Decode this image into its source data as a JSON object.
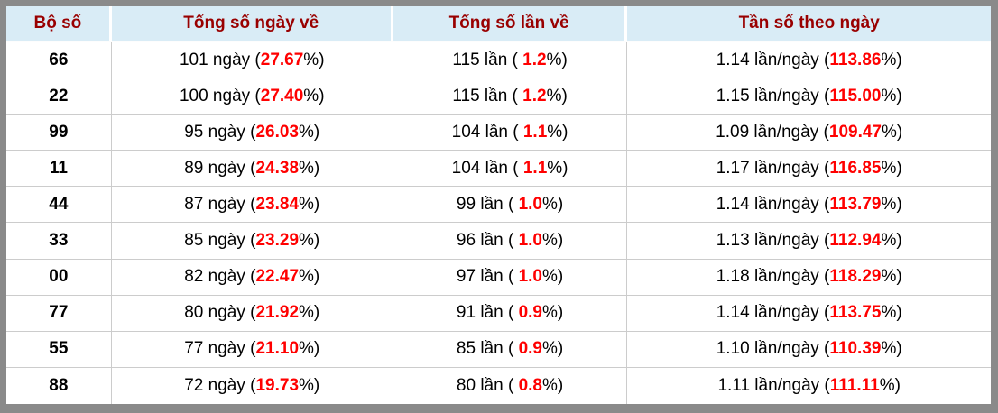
{
  "colors": {
    "frame_gray": "#8a8a8a",
    "header_background": "#d9ecf6",
    "header_text": "#990000",
    "highlight_red": "#ff0000",
    "grid_line": "#cccccc",
    "body_text": "#000000"
  },
  "chart_data": {
    "type": "table",
    "headers": [
      "Bộ số",
      "Tổng số ngày về",
      "Tổng số lần về",
      "Tần số theo ngày"
    ],
    "rows": [
      {
        "cells": [
          {
            "segments": [
              {
                "text": "66"
              }
            ]
          },
          {
            "segments": [
              {
                "text": "101 ngày ("
              },
              {
                "text": "27.67",
                "red": true
              },
              {
                "text": "%)"
              }
            ]
          },
          {
            "segments": [
              {
                "text": "115 lần ( "
              },
              {
                "text": "1.2",
                "red": true
              },
              {
                "text": "%)"
              }
            ]
          },
          {
            "segments": [
              {
                "text": "1.14 lần/ngày ("
              },
              {
                "text": "113.86",
                "red": true
              },
              {
                "text": "%)"
              }
            ]
          }
        ]
      },
      {
        "cells": [
          {
            "segments": [
              {
                "text": "22"
              }
            ]
          },
          {
            "segments": [
              {
                "text": "100 ngày ("
              },
              {
                "text": "27.40",
                "red": true
              },
              {
                "text": "%)"
              }
            ]
          },
          {
            "segments": [
              {
                "text": "115 lần ( "
              },
              {
                "text": "1.2",
                "red": true
              },
              {
                "text": "%)"
              }
            ]
          },
          {
            "segments": [
              {
                "text": "1.15 lần/ngày ("
              },
              {
                "text": "115.00",
                "red": true
              },
              {
                "text": "%)"
              }
            ]
          }
        ]
      },
      {
        "cells": [
          {
            "segments": [
              {
                "text": "99"
              }
            ]
          },
          {
            "segments": [
              {
                "text": "95 ngày ("
              },
              {
                "text": "26.03",
                "red": true
              },
              {
                "text": "%)"
              }
            ]
          },
          {
            "segments": [
              {
                "text": "104 lần ( "
              },
              {
                "text": "1.1",
                "red": true
              },
              {
                "text": "%)"
              }
            ]
          },
          {
            "segments": [
              {
                "text": "1.09 lần/ngày ("
              },
              {
                "text": "109.47",
                "red": true
              },
              {
                "text": "%)"
              }
            ]
          }
        ]
      },
      {
        "cells": [
          {
            "segments": [
              {
                "text": "11"
              }
            ]
          },
          {
            "segments": [
              {
                "text": "89 ngày ("
              },
              {
                "text": "24.38",
                "red": true
              },
              {
                "text": "%)"
              }
            ]
          },
          {
            "segments": [
              {
                "text": "104 lần ( "
              },
              {
                "text": "1.1",
                "red": true
              },
              {
                "text": "%)"
              }
            ]
          },
          {
            "segments": [
              {
                "text": "1.17 lần/ngày ("
              },
              {
                "text": "116.85",
                "red": true
              },
              {
                "text": "%)"
              }
            ]
          }
        ]
      },
      {
        "cells": [
          {
            "segments": [
              {
                "text": "44"
              }
            ]
          },
          {
            "segments": [
              {
                "text": "87 ngày ("
              },
              {
                "text": "23.84",
                "red": true
              },
              {
                "text": "%)"
              }
            ]
          },
          {
            "segments": [
              {
                "text": "99 lần ( "
              },
              {
                "text": "1.0",
                "red": true
              },
              {
                "text": "%)"
              }
            ]
          },
          {
            "segments": [
              {
                "text": "1.14 lần/ngày ("
              },
              {
                "text": "113.79",
                "red": true
              },
              {
                "text": "%)"
              }
            ]
          }
        ]
      },
      {
        "cells": [
          {
            "segments": [
              {
                "text": "33"
              }
            ]
          },
          {
            "segments": [
              {
                "text": "85 ngày ("
              },
              {
                "text": "23.29",
                "red": true
              },
              {
                "text": "%)"
              }
            ]
          },
          {
            "segments": [
              {
                "text": "96 lần ( "
              },
              {
                "text": "1.0",
                "red": true
              },
              {
                "text": "%)"
              }
            ]
          },
          {
            "segments": [
              {
                "text": "1.13 lần/ngày ("
              },
              {
                "text": "112.94",
                "red": true
              },
              {
                "text": "%)"
              }
            ]
          }
        ]
      },
      {
        "cells": [
          {
            "segments": [
              {
                "text": "00"
              }
            ]
          },
          {
            "segments": [
              {
                "text": "82 ngày ("
              },
              {
                "text": "22.47",
                "red": true
              },
              {
                "text": "%)"
              }
            ]
          },
          {
            "segments": [
              {
                "text": "97 lần ( "
              },
              {
                "text": "1.0",
                "red": true
              },
              {
                "text": "%)"
              }
            ]
          },
          {
            "segments": [
              {
                "text": "1.18 lần/ngày ("
              },
              {
                "text": "118.29",
                "red": true
              },
              {
                "text": "%)"
              }
            ]
          }
        ]
      },
      {
        "cells": [
          {
            "segments": [
              {
                "text": "77"
              }
            ]
          },
          {
            "segments": [
              {
                "text": "80 ngày ("
              },
              {
                "text": "21.92",
                "red": true
              },
              {
                "text": "%)"
              }
            ]
          },
          {
            "segments": [
              {
                "text": "91 lần ( "
              },
              {
                "text": "0.9",
                "red": true
              },
              {
                "text": "%)"
              }
            ]
          },
          {
            "segments": [
              {
                "text": "1.14 lần/ngày ("
              },
              {
                "text": "113.75",
                "red": true
              },
              {
                "text": "%)"
              }
            ]
          }
        ]
      },
      {
        "cells": [
          {
            "segments": [
              {
                "text": "55"
              }
            ]
          },
          {
            "segments": [
              {
                "text": "77 ngày ("
              },
              {
                "text": "21.10",
                "red": true
              },
              {
                "text": "%)"
              }
            ]
          },
          {
            "segments": [
              {
                "text": "85 lần ( "
              },
              {
                "text": "0.9",
                "red": true
              },
              {
                "text": "%)"
              }
            ]
          },
          {
            "segments": [
              {
                "text": "1.10 lần/ngày ("
              },
              {
                "text": "110.39",
                "red": true
              },
              {
                "text": "%)"
              }
            ]
          }
        ]
      },
      {
        "cells": [
          {
            "segments": [
              {
                "text": "88"
              }
            ]
          },
          {
            "segments": [
              {
                "text": "72 ngày ("
              },
              {
                "text": "19.73",
                "red": true
              },
              {
                "text": "%)"
              }
            ]
          },
          {
            "segments": [
              {
                "text": "80 lần ( "
              },
              {
                "text": "0.8",
                "red": true
              },
              {
                "text": "%)"
              }
            ]
          },
          {
            "segments": [
              {
                "text": "1.11 lần/ngày ("
              },
              {
                "text": "111.11",
                "red": true
              },
              {
                "text": "%)"
              }
            ]
          }
        ]
      }
    ]
  }
}
